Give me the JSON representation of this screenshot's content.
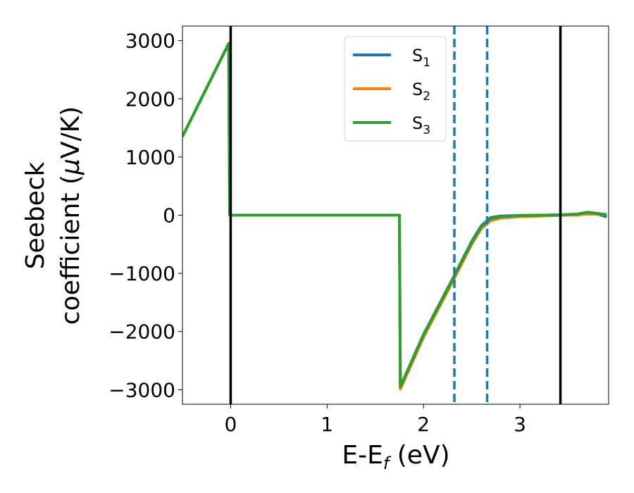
{
  "chart_data": {
    "type": "line",
    "title": "",
    "xlabel": "E-E",
    "xlabel_sub": "f",
    "xlabel_unit": " (eV)",
    "ylabel_line1": "Seebeck",
    "ylabel_line2_text": "coefficient  (",
    "ylabel_mu": "μ",
    "ylabel_unit": "V/K)",
    "xlim": [
      -0.5,
      3.92
    ],
    "ylim": [
      -3250,
      3250
    ],
    "xticks": [
      0,
      1,
      2,
      3
    ],
    "xtick_labels": [
      "0",
      "1",
      "2",
      "3"
    ],
    "yticks": [
      -3000,
      -2000,
      -1000,
      0,
      1000,
      2000,
      3000
    ],
    "ytick_labels": [
      "−3000",
      "−2000",
      "−1000",
      "0",
      "1000",
      "2000",
      "3000"
    ],
    "grid": false,
    "legend_position": "top-center",
    "vertical_lines": [
      {
        "x": 0.0,
        "style": "solid",
        "color": "#000000"
      },
      {
        "x": 3.42,
        "style": "solid",
        "color": "#000000"
      },
      {
        "x": 2.32,
        "style": "dashed",
        "color": "#1f77b4"
      },
      {
        "x": 2.66,
        "style": "dashed",
        "color": "#1f77b4"
      }
    ],
    "series": [
      {
        "name": "S",
        "sub": "1",
        "color": "#1f77b4",
        "x": [
          -0.5,
          -0.02,
          -0.01,
          1.75,
          1.76,
          2.0,
          2.3,
          2.5,
          2.6,
          2.7,
          2.8,
          3.0,
          3.2,
          3.42,
          3.6,
          3.7,
          3.8,
          3.9
        ],
        "y": [
          1350,
          2950,
          0,
          0,
          -2950,
          -2050,
          -1100,
          -450,
          -180,
          -40,
          -15,
          -5,
          0,
          5,
          15,
          40,
          20,
          -30
        ]
      },
      {
        "name": "S",
        "sub": "2",
        "color": "#ff7f0e",
        "x": [
          -0.5,
          -0.02,
          -0.01,
          1.75,
          1.76,
          2.0,
          2.3,
          2.5,
          2.6,
          2.7,
          2.8,
          3.0,
          3.2,
          3.42,
          3.6,
          3.7,
          3.8,
          3.9
        ],
        "y": [
          1350,
          2950,
          0,
          0,
          -2990,
          -2100,
          -1150,
          -500,
          -230,
          -90,
          -50,
          -25,
          -15,
          -5,
          5,
          20,
          15,
          10
        ]
      },
      {
        "name": "S",
        "sub": "3",
        "color": "#2ca02c",
        "x": [
          -0.5,
          -0.02,
          -0.01,
          1.75,
          1.76,
          2.0,
          2.3,
          2.5,
          2.6,
          2.7,
          2.8,
          3.0,
          3.2,
          3.42,
          3.6,
          3.7,
          3.8,
          3.9
        ],
        "y": [
          1350,
          2950,
          0,
          0,
          -2950,
          -2060,
          -1110,
          -470,
          -200,
          -60,
          -25,
          -8,
          -2,
          5,
          20,
          50,
          30,
          10
        ]
      }
    ]
  }
}
